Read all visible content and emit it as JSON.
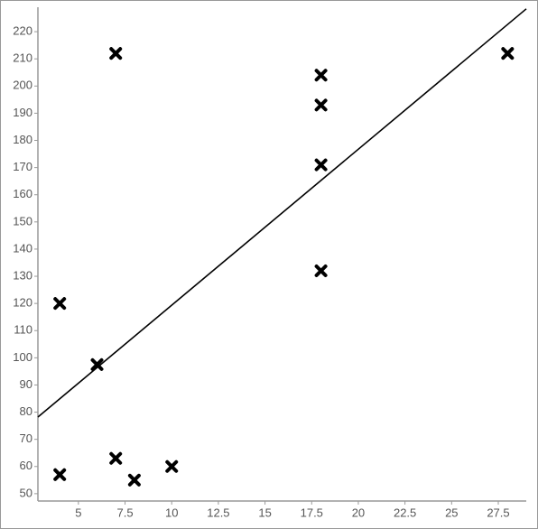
{
  "chart_data": {
    "type": "scatter",
    "x": [
      4,
      4,
      6,
      7,
      7,
      8,
      10,
      18,
      18,
      18,
      18,
      28
    ],
    "y": [
      57,
      120,
      97.5,
      212,
      63,
      55,
      60,
      204,
      193,
      171,
      132,
      212
    ],
    "color": "#000000",
    "fit": {
      "x": [
        2.83,
        29
      ],
      "y": [
        78.2,
        228.4
      ],
      "color": "#000000"
    },
    "xlim": [
      2.83,
      29
    ],
    "xticks": [
      5,
      7.5,
      10,
      12.5,
      15,
      17.5,
      20,
      22.5,
      25,
      27.5
    ],
    "ylim": [
      47.3,
      229
    ],
    "yticks": [
      50,
      60,
      70,
      80,
      90,
      100,
      110,
      120,
      130,
      140,
      150,
      160,
      170,
      180,
      190,
      200,
      210,
      220
    ]
  }
}
